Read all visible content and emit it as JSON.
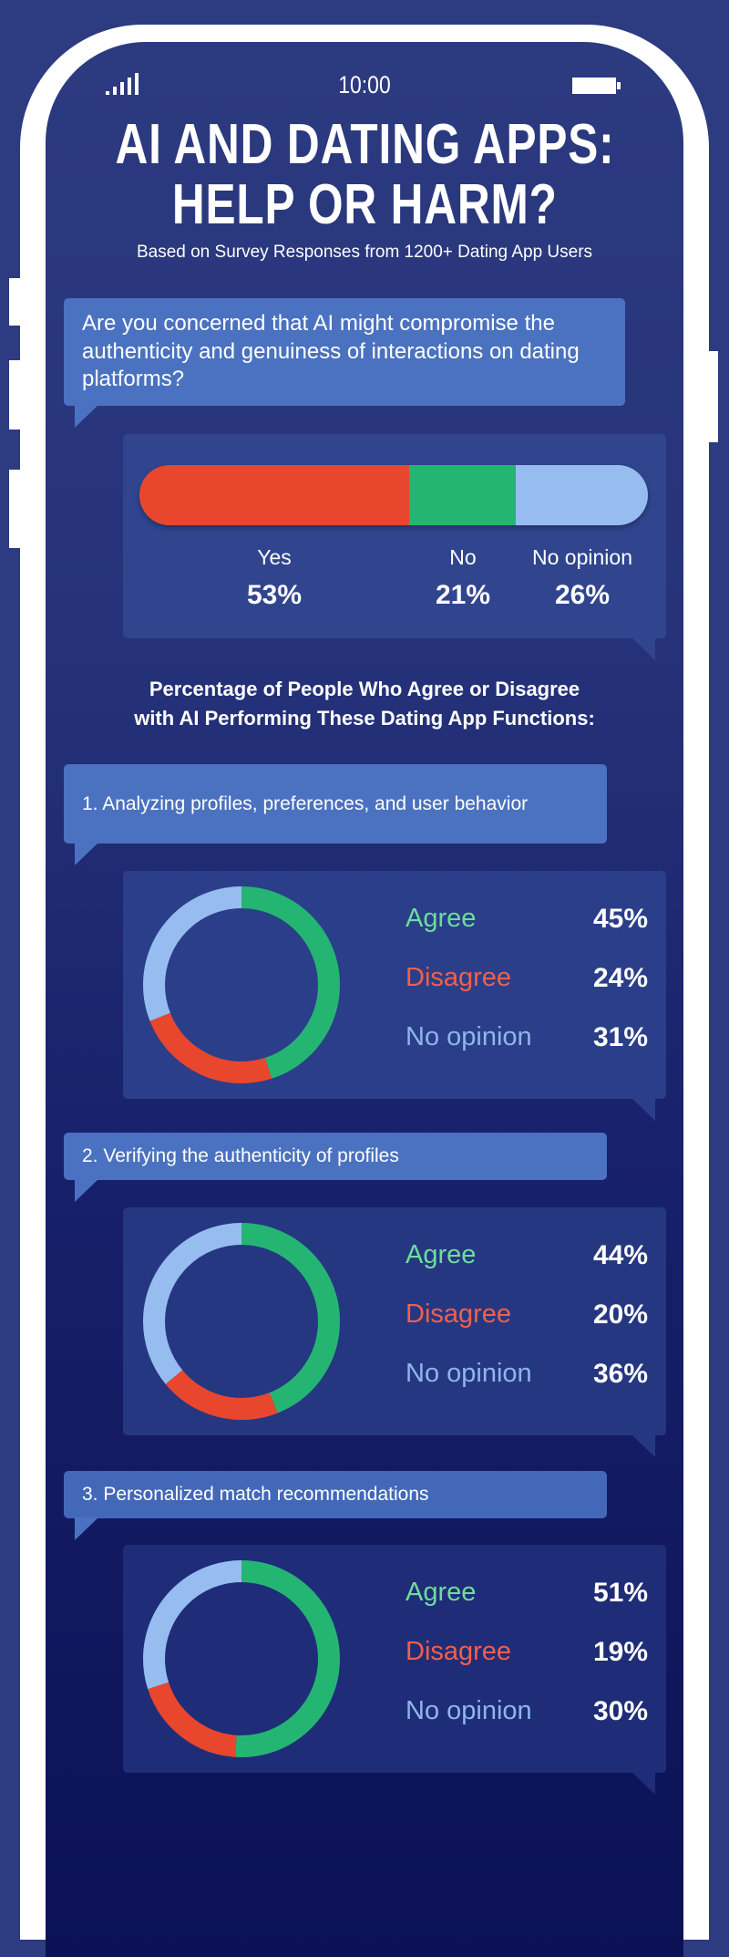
{
  "status_bar": {
    "time": "10:00",
    "signal_icon": "signal-icon",
    "battery_icon": "battery-icon"
  },
  "title": {
    "line1": "AI AND DATING APPS:",
    "line2": "HELP OR HARM?"
  },
  "subtitle": "Based on Survey Responses from 1200+ Dating App Users",
  "colors": {
    "yes": "#e8472e",
    "disagree": "#e8472e",
    "no": "#25b573",
    "agree": "#25b573",
    "no_opinion": "#97bdf0",
    "agree_text": "#6fdc9c",
    "disagree_text": "#f0604a",
    "no_opinion_text": "#8fb5ea",
    "bubble": "#4a72c0"
  },
  "question": "Are you concerned that AI might compromise the authenticity and genuiness of interactions on dating platforms?",
  "chart_data": [
    {
      "type": "bar",
      "orientation": "horizontal-stacked",
      "categories": [
        "Yes",
        "No",
        "No opinion"
      ],
      "values": [
        53,
        21,
        26
      ],
      "labels": [
        "53%",
        "21%",
        "26%"
      ]
    },
    {
      "type": "pie",
      "donut": true,
      "title": "1. Analyzing profiles, preferences, and user behavior",
      "categories": [
        "Agree",
        "Disagree",
        "No opinion"
      ],
      "values": [
        45,
        24,
        31
      ],
      "labels": [
        "45%",
        "24%",
        "31%"
      ]
    },
    {
      "type": "pie",
      "donut": true,
      "title": "2. Verifying the authenticity of profiles",
      "categories": [
        "Agree",
        "Disagree",
        "No opinion"
      ],
      "values": [
        44,
        20,
        36
      ],
      "labels": [
        "44%",
        "20%",
        "36%"
      ]
    },
    {
      "type": "pie",
      "donut": true,
      "title": "3. Personalized match recommendations",
      "categories": [
        "Agree",
        "Disagree",
        "No opinion"
      ],
      "values": [
        51,
        19,
        30
      ],
      "labels": [
        "51%",
        "19%",
        "30%"
      ]
    }
  ],
  "section_heading": {
    "line1": "Percentage of People Who Agree or Disagree",
    "line2": "with AI Performing These Dating App Functions:"
  }
}
